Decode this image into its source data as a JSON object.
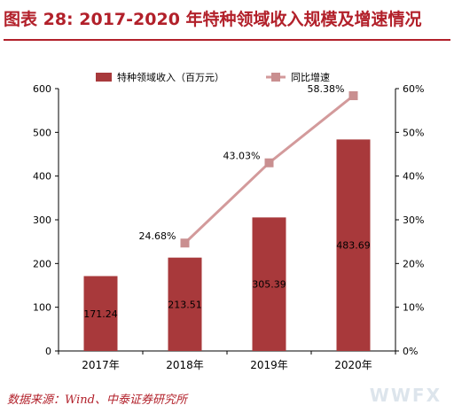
{
  "title": "图表 28: 2017-2020 年特种领域收入规模及增速情况",
  "source": "数据来源：Wind、中泰证券研究所",
  "watermark": "WWFX",
  "chart_data": {
    "type": "bar+line",
    "categories": [
      "2017年",
      "2018年",
      "2019年",
      "2020年"
    ],
    "series": [
      {
        "name": "特种领域收入（百万元）",
        "type": "bar",
        "axis": "left",
        "values": [
          171.24,
          213.51,
          305.39,
          483.69
        ],
        "labels": [
          "171.24",
          "213.51",
          "305.39",
          "483.69"
        ]
      },
      {
        "name": "同比增速",
        "type": "line",
        "axis": "right",
        "values": [
          null,
          24.68,
          43.03,
          58.38
        ],
        "labels": [
          "",
          "24.68%",
          "43.03%",
          "58.38%"
        ]
      }
    ],
    "y_left": {
      "min": 0,
      "max": 600,
      "ticks": [
        "0",
        "100",
        "200",
        "300",
        "400",
        "500",
        "600"
      ]
    },
    "y_right": {
      "min": 0,
      "max": 60,
      "ticks": [
        "0%",
        "10%",
        "20%",
        "30%",
        "40%",
        "50%",
        "60%"
      ]
    },
    "legend_position": "top",
    "colors": {
      "bar": "#a8393b",
      "line": "#d39a9b",
      "marker": "#c98f90"
    }
  }
}
